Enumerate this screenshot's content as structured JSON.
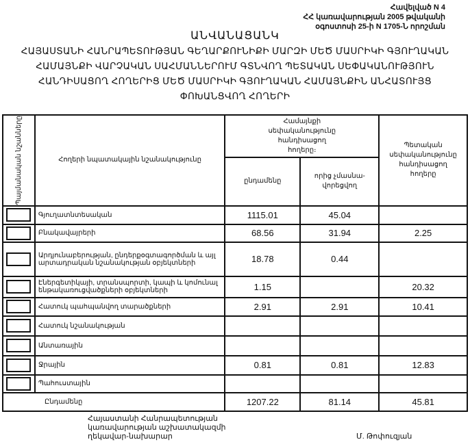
{
  "annex": {
    "line1": "Հավելված N 4",
    "line2": "ՀՀ կառավարության 2005 թվականի",
    "line3": "օգոստոսի 25-ի N 1705-Ն որոշման"
  },
  "title": "ԱՆՎԱՆԱՑԱՆԿ",
  "subtitle_lines": [
    "ՀԱՅԱՍՏԱՆԻ ՀԱՆՐԱՊԵՏՈՒԹՅԱՆ ԳԵՂԱՐՔՈՒՆԻՔԻ ՄԱՐԶԻ ՄԵԾ ՄԱՍՐԻԿԻ ԳՅՈՒՂԱԿԱՆ",
    "ՀԱՄԱՅՆՔԻ ՎԱՐՉԱԿԱՆ ՍԱՀՄԱՆՆԵՐՈՒՄ ԳՏՆՎՈՂ ՊԵՏԱԿԱՆ ՍԵՓԱԿԱՆՈՒԹՅՈՒՆ",
    "ՀԱՆԴԻՍԱՑՈՂ ՀՈՂԵՐԻՑ ՄԵԾ ՄԱՍՐԻԿԻ ԳՅՈՒՂԱԿԱՆ ՀԱՄԱՅՆՔԻՆ ԱՆՀԱՏՈՒՅՑ",
    "ՓՈԽԱՆՑՎՈՂ ՀՈՂԵՐԻ"
  ],
  "table": {
    "headers": {
      "code": "Պայմանական նշանները",
      "purpose": "Հողերի նպատակային նշանակությունը",
      "community": "Համայնքի սեփականությունը հանդիսացող հողերը։",
      "total": "ընդամենը",
      "of_which": "որից չմասնա- վորեցվող",
      "state": "Պետական սեփականությունը հանդիսացող հողերը"
    },
    "rows": [
      {
        "label": "Գյուղատնտեսական",
        "total": "1115.01",
        "of_which": "45.04",
        "state": ""
      },
      {
        "label": "Բնակավայրերի",
        "total": "68.56",
        "of_which": "31.94",
        "state": "2.25"
      },
      {
        "label": "Արդյունաբերության, ընդերքօգտագործման և այլ արտադրական նշանակության օբյեկտների",
        "total": "18.78",
        "of_which": "0.44",
        "state": ""
      },
      {
        "label": "Էներգետիկայի, տրանսպորտի, կապի և կոմունալ ենթակառուցվածքների օբյեկտների",
        "total": "1.15",
        "of_which": "",
        "state": "20.32"
      },
      {
        "label": "Հատուկ պահպանվող տարածքների",
        "total": "2.91",
        "of_which": "2.91",
        "state": "10.41"
      },
      {
        "label": "Հատուկ նշանակության",
        "total": "",
        "of_which": "",
        "state": ""
      },
      {
        "label": "Անտառային",
        "total": "",
        "of_which": "",
        "state": ""
      },
      {
        "label": "Ջրային",
        "total": "0.81",
        "of_which": "0.81",
        "state": "12.83"
      },
      {
        "label": "Պահուստային",
        "total": "",
        "of_which": "",
        "state": ""
      }
    ],
    "totals": {
      "label": "Ընդամենը",
      "total": "1207.22",
      "of_which": "81.14",
      "state": "45.81"
    }
  },
  "footer": {
    "position_lines": [
      "Հայաստանի Հանրապետության",
      "կառավարության աշխատակազմի",
      "ղեկավար-նախարար"
    ],
    "signatory": "Մ. Թոփուզյան"
  }
}
